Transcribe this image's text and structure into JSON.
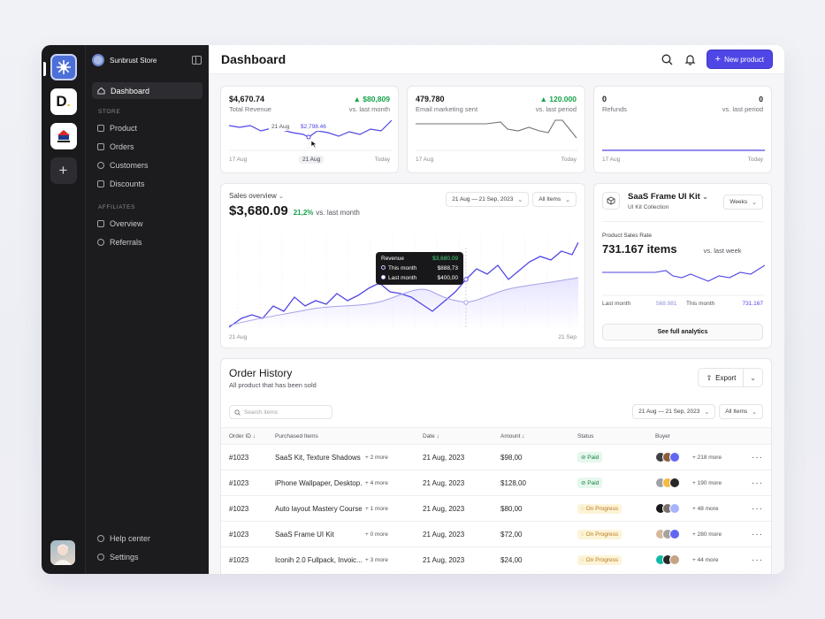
{
  "sidebar": {
    "store_name": "Sunbrust Store",
    "section_store": "STORE",
    "section_affiliates": "AFFILIATES",
    "items": {
      "dashboard": "Dashboard",
      "product": "Product",
      "orders": "Orders",
      "customers": "Customers",
      "discounts": "Discounts",
      "overview": "Overview",
      "referrals": "Referrals",
      "help": "Help center",
      "settings": "Settings"
    }
  },
  "header": {
    "title": "Dashboard",
    "new_product": "New product"
  },
  "kpis": [
    {
      "value": "$4,670.74",
      "label": "Total Revenue",
      "delta": "$80,809",
      "compare": "vs. last month",
      "x_start": "17 Aug",
      "x_mid": "21 Aug",
      "x_end": "Today",
      "tip_date": "21 Aug",
      "tip_value": "$2,798.46"
    },
    {
      "value": "479.780",
      "label": "Email marketing sent",
      "delta": "120.000",
      "compare": "vs. last period",
      "x_start": "17 Aug",
      "x_end": "Today"
    },
    {
      "value": "0",
      "label": "Refunds",
      "delta": "0",
      "compare": "vs. last period",
      "x_start": "17 Aug",
      "x_end": "Today"
    }
  ],
  "sales": {
    "title": "Sales overview",
    "value": "$3,680.09",
    "pct": "21,2%",
    "compare": "vs. last month",
    "date_from": "21 Aug",
    "date_sep": "—",
    "date_to": "21 Sep, 2023",
    "filter": "All Items",
    "x_start": "21 Aug",
    "x_end": "21 Sep",
    "tooltip": {
      "title": "Revenue",
      "total": "$3,680.09",
      "this_label": "This month",
      "this_value": "$888,73",
      "last_label": "Last month",
      "last_value": "$400,00"
    }
  },
  "product_card": {
    "name": "SaaS Frame UI Kit",
    "sub": "UI Kit Collection",
    "period": "Weeks",
    "rate_label": "Product Sales Rate",
    "rate_value": "731.167 items",
    "rate_compare": "vs. last week",
    "last_label": "Last month",
    "last_value": "568.981",
    "this_label": "This month",
    "this_value": "731.167",
    "cta": "See full analytics"
  },
  "orders": {
    "title": "Order History",
    "subtitle": "All product that has been sold",
    "export": "Export",
    "search_placeholder": "Search items",
    "date_from": "21 Aug",
    "date_sep": "—",
    "date_to": "21 Sep, 2023",
    "filter": "All Items",
    "columns": {
      "id": "Order ID",
      "items": "Purchased Items",
      "date": "Date",
      "amount": "Amount",
      "status": "Status",
      "buyer": "Buyer"
    },
    "rows": [
      {
        "id": "#1023",
        "item": "SaaS Kit, Texture Shadows",
        "more": "+ 2 more",
        "date": "21 Aug, 2023",
        "amount": "$98,00",
        "status": "Paid",
        "buyers_more": "+ 218 more"
      },
      {
        "id": "#1023",
        "item": "iPhone Wallpaper, Desktop...",
        "more": "+ 4 more",
        "date": "21 Aug, 2023",
        "amount": "$128,00",
        "status": "Paid",
        "buyers_more": "+ 190 more"
      },
      {
        "id": "#1023",
        "item": "Auto layout Mastery Course",
        "more": "+ 1 more",
        "date": "21 Aug, 2023",
        "amount": "$80,00",
        "status": "On Progress",
        "buyers_more": "+ 48 more"
      },
      {
        "id": "#1023",
        "item": "SaaS Frame UI Kit",
        "more": "+ 0 more",
        "date": "21 Aug, 2023",
        "amount": "$72,00",
        "status": "On Progress",
        "buyers_more": "+ 280 more"
      },
      {
        "id": "#1023",
        "item": "Iconih 2.0 Fullpack, Invoic...",
        "more": "+ 3 more",
        "date": "21 Aug, 2023",
        "amount": "$24,00",
        "status": "On Progress",
        "buyers_more": "+ 44 more"
      }
    ]
  }
}
